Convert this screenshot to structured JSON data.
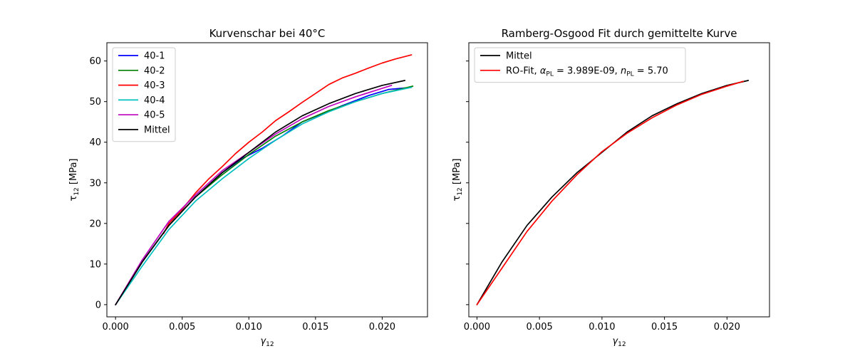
{
  "chart_data": [
    {
      "type": "line",
      "title": "Kurvenschar bei 40°C",
      "xlabel": "γ",
      "xlabel_sub": "12",
      "ylabel": "τ",
      "ylabel_sub": "12",
      "ylabel_unit": " [MPa]",
      "xlim": [
        -0.00065,
        0.0234
      ],
      "ylim": [
        -3.0,
        64.5
      ],
      "xticks": [
        0.0,
        0.005,
        0.01,
        0.015,
        0.02
      ],
      "xtick_labels": [
        "0.000",
        "0.005",
        "0.010",
        "0.015",
        "0.020"
      ],
      "yticks": [
        0,
        10,
        20,
        30,
        40,
        50,
        60
      ],
      "ytick_labels": [
        "0",
        "10",
        "20",
        "30",
        "40",
        "50",
        "60"
      ],
      "grid": false,
      "legend_position": "top-left",
      "series": [
        {
          "name": "40-1",
          "color": "#0000ff",
          "x": [
            0,
            0.002,
            0.004,
            0.006,
            0.008,
            0.0095,
            0.011,
            0.0125,
            0.014,
            0.0155,
            0.017,
            0.019,
            0.0205,
            0.0222
          ],
          "y": [
            0,
            10.5,
            19.5,
            26.5,
            32.5,
            36,
            38.5,
            41.5,
            45,
            47,
            49,
            51.5,
            53,
            53.5
          ]
        },
        {
          "name": "40-2",
          "color": "#008000",
          "x": [
            0,
            0.002,
            0.004,
            0.006,
            0.008,
            0.01,
            0.012,
            0.014,
            0.016,
            0.018,
            0.02,
            0.0223
          ],
          "y": [
            0,
            10.5,
            19.5,
            26.5,
            32,
            37,
            41.5,
            45,
            47.8,
            50,
            52,
            53.8
          ]
        },
        {
          "name": "40-3",
          "color": "#ff0000",
          "x": [
            0.0036,
            0.004,
            0.005,
            0.006,
            0.007,
            0.008,
            0.009,
            0.01,
            0.011,
            0.012,
            0.013,
            0.014,
            0.015,
            0.016,
            0.017,
            0.018,
            0.019,
            0.02,
            0.021,
            0.0222
          ],
          "y": [
            17.5,
            20,
            23.5,
            27.5,
            31,
            34,
            37.2,
            40,
            42.5,
            45.3,
            47.5,
            49.8,
            52,
            54.2,
            55.8,
            57,
            58.3,
            59.5,
            60.5,
            61.5
          ]
        },
        {
          "name": "40-4",
          "color": "#00bfbf",
          "x": [
            0,
            0.002,
            0.004,
            0.006,
            0.008,
            0.01,
            0.012,
            0.014,
            0.016,
            0.018,
            0.02,
            0.0222
          ],
          "y": [
            0,
            9.5,
            18.5,
            25.5,
            31,
            36,
            40.5,
            44.5,
            47.5,
            50,
            52,
            53.5
          ]
        },
        {
          "name": "40-5",
          "color": "#bf00bf",
          "x": [
            0,
            0.002,
            0.004,
            0.006,
            0.008,
            0.01,
            0.012,
            0.014,
            0.016,
            0.018,
            0.0207
          ],
          "y": [
            0,
            11,
            20.5,
            27,
            33,
            37.5,
            42,
            45.8,
            48.8,
            51.2,
            54
          ]
        },
        {
          "name": "Mittel",
          "color": "#000000",
          "x": [
            0,
            0.002,
            0.004,
            0.006,
            0.008,
            0.01,
            0.012,
            0.014,
            0.016,
            0.018,
            0.02,
            0.0217
          ],
          "y": [
            0,
            10.5,
            19.5,
            26.5,
            32.5,
            37.5,
            42.5,
            46.5,
            49.5,
            52,
            54,
            55.2
          ]
        }
      ]
    },
    {
      "type": "line",
      "title": "Ramberg-Osgood Fit durch gemittelte Kurve",
      "xlabel": "γ",
      "xlabel_sub": "12",
      "ylabel": "τ",
      "ylabel_sub": "12",
      "ylabel_unit": " [MPa]",
      "xlim": [
        -0.00065,
        0.0234
      ],
      "ylim": [
        -3.0,
        64.5
      ],
      "xticks": [
        0.0,
        0.005,
        0.01,
        0.015,
        0.02
      ],
      "xtick_labels": [
        "0.000",
        "0.005",
        "0.010",
        "0.015",
        "0.020"
      ],
      "yticks": [
        0,
        10,
        20,
        30,
        40,
        50,
        60
      ],
      "ytick_labels": [],
      "grid": false,
      "legend_position": "top-left",
      "series": [
        {
          "name": "Mittel",
          "color": "#000000",
          "x": [
            0,
            0.002,
            0.004,
            0.006,
            0.008,
            0.01,
            0.012,
            0.014,
            0.016,
            0.018,
            0.02,
            0.0217
          ],
          "y": [
            0,
            10.5,
            19.5,
            26.5,
            32.5,
            37.5,
            42.5,
            46.5,
            49.5,
            52,
            54,
            55.2
          ]
        },
        {
          "name": "RO-Fit, αPL = 3.989E-09, nPL = 5.70",
          "color": "#ff0000",
          "x": [
            0,
            0.002,
            0.004,
            0.006,
            0.008,
            0.01,
            0.012,
            0.014,
            0.016,
            0.018,
            0.02,
            0.0213
          ],
          "y": [
            0,
            9,
            18,
            25.5,
            32,
            37.7,
            42.2,
            46,
            49.2,
            51.8,
            53.8,
            55
          ]
        }
      ],
      "legend_rich": {
        "fit_prefix": "RO-Fit, ",
        "alpha": "α",
        "sub": "PL",
        "alpha_value": " = 3.989E-09, ",
        "n": "n",
        "n_value": " = 5.70"
      }
    }
  ]
}
